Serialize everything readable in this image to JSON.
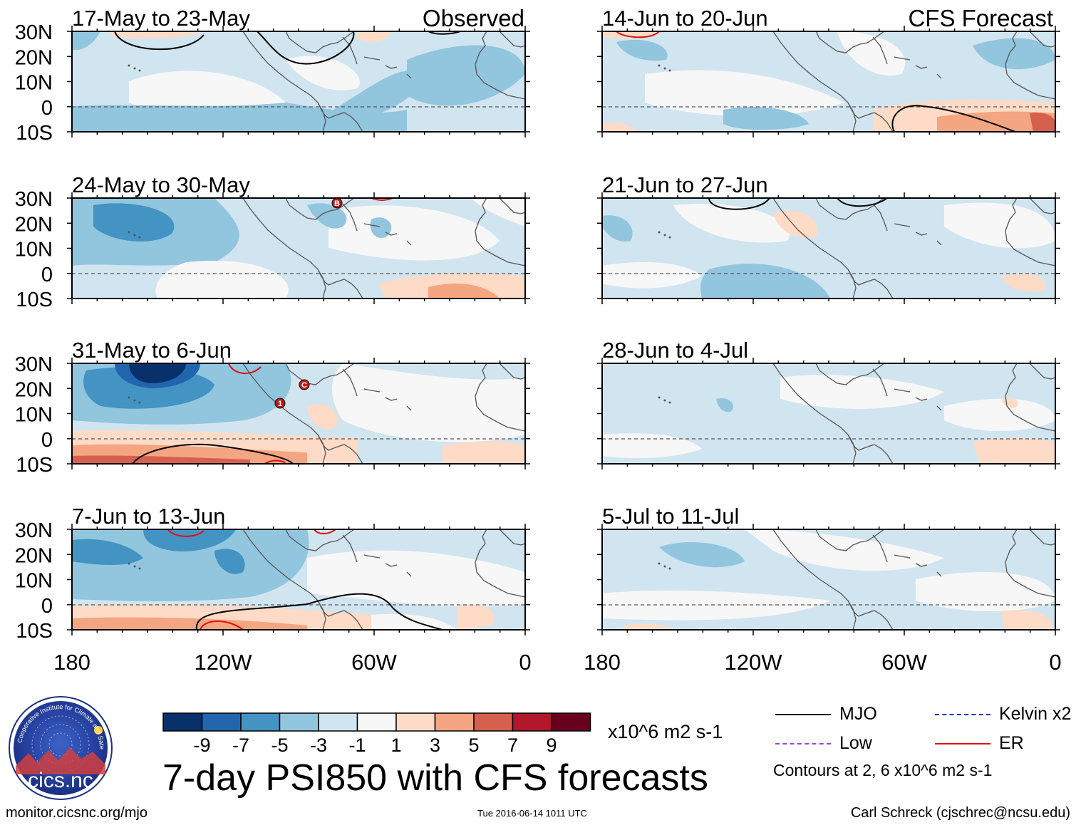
{
  "header": {
    "observed_label": "Observed",
    "forecast_label": "CFS Forecast"
  },
  "panels": [
    {
      "id": "p1",
      "title": "17-May to 23-May",
      "col": "left"
    },
    {
      "id": "p2",
      "title": "24-May to 30-May",
      "col": "left"
    },
    {
      "id": "p3",
      "title": "31-May to 6-Jun",
      "col": "left"
    },
    {
      "id": "p4",
      "title": "7-Jun to 13-Jun",
      "col": "left"
    },
    {
      "id": "p5",
      "title": "14-Jun to 20-Jun",
      "col": "right"
    },
    {
      "id": "p6",
      "title": "21-Jun to 27-Jun",
      "col": "right"
    },
    {
      "id": "p7",
      "title": "28-Jun to 4-Jul",
      "col": "right"
    },
    {
      "id": "p8",
      "title": "5-Jul to 11-Jul",
      "col": "right"
    }
  ],
  "axes": {
    "lat_labels": [
      "30N",
      "20N",
      "10N",
      "0",
      "10S"
    ],
    "lon_labels": [
      "180",
      "120W",
      "60W",
      "0"
    ]
  },
  "colorbar": {
    "tick_labels": [
      "-9",
      "-7",
      "-5",
      "-3",
      "-1",
      "1",
      "3",
      "5",
      "7",
      "9"
    ],
    "colors": [
      "#08306b",
      "#2166ac",
      "#4393c3",
      "#92c5de",
      "#d1e5f0",
      "#f7f7f7",
      "#fddbc7",
      "#f4a582",
      "#d6604d",
      "#b2182b",
      "#67001f"
    ],
    "units": "x10^6 m2 s-1"
  },
  "legend": {
    "items": [
      {
        "label": "MJO",
        "color": "#000000",
        "style": "solid"
      },
      {
        "label": "Kelvin x2",
        "color": "#1f2fd0",
        "style": "dashed"
      },
      {
        "label": "Low",
        "color": "#a040e0",
        "style": "dashed"
      },
      {
        "label": "ER",
        "color": "#e01010",
        "style": "solid"
      }
    ],
    "note": "Contours at 2, 6 x10^6 m2 s-1"
  },
  "markers": [
    {
      "letter": "B"
    },
    {
      "letter": "C"
    },
    {
      "letter": "1"
    }
  ],
  "title": "7-day PSI850 with CFS forecasts",
  "logo": {
    "text": "cics.nc",
    "ring_text": "Cooperative Institute for Climate and Satellites"
  },
  "footer": {
    "url": "monitor.cicsnc.org/mjo",
    "timestamp": "Tue 2016-06-14 1011 UTC",
    "credit": "Carl Schreck (cjschrec@ncsu.edu)"
  }
}
